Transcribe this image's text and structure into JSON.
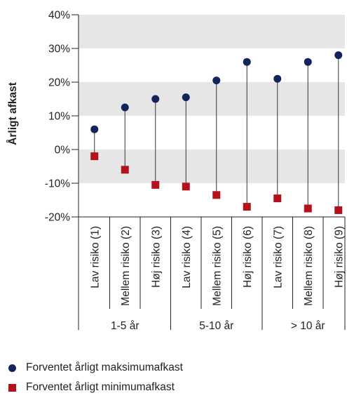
{
  "chart_data": {
    "type": "scatter",
    "ylabel": "Årligt afkast",
    "ylim": [
      -20,
      40
    ],
    "yticks": [
      "40%",
      "30%",
      "20%",
      "10%",
      "0%",
      "-10%",
      "-20%"
    ],
    "categories": [
      "Lav risiko (1)",
      "Mellem risiko (2)",
      "Høj risiko (3)",
      "Lav risiko (4)",
      "Mellem risiko (5)",
      "Høj risiko (6)",
      "Lav risiko (7)",
      "Mellem risiko (8)",
      "Høj risiko (9)"
    ],
    "groups": [
      "1-5 år",
      "5-10 år",
      "> 10 år"
    ],
    "series": [
      {
        "name": "Forventet årligt maksimumafkast",
        "color": "#13235b",
        "marker": "circle",
        "values": [
          6,
          12.5,
          15,
          15.5,
          20.5,
          26,
          21,
          26,
          28
        ]
      },
      {
        "name": "Forventet årligt minimumafkast",
        "color": "#b3121c",
        "marker": "square",
        "values": [
          -2,
          -6,
          -10.5,
          -11,
          -13.5,
          -17,
          -14.5,
          -17.5,
          -18
        ]
      }
    ],
    "grid_bands": "alternating gray",
    "legend_position": "bottom"
  }
}
